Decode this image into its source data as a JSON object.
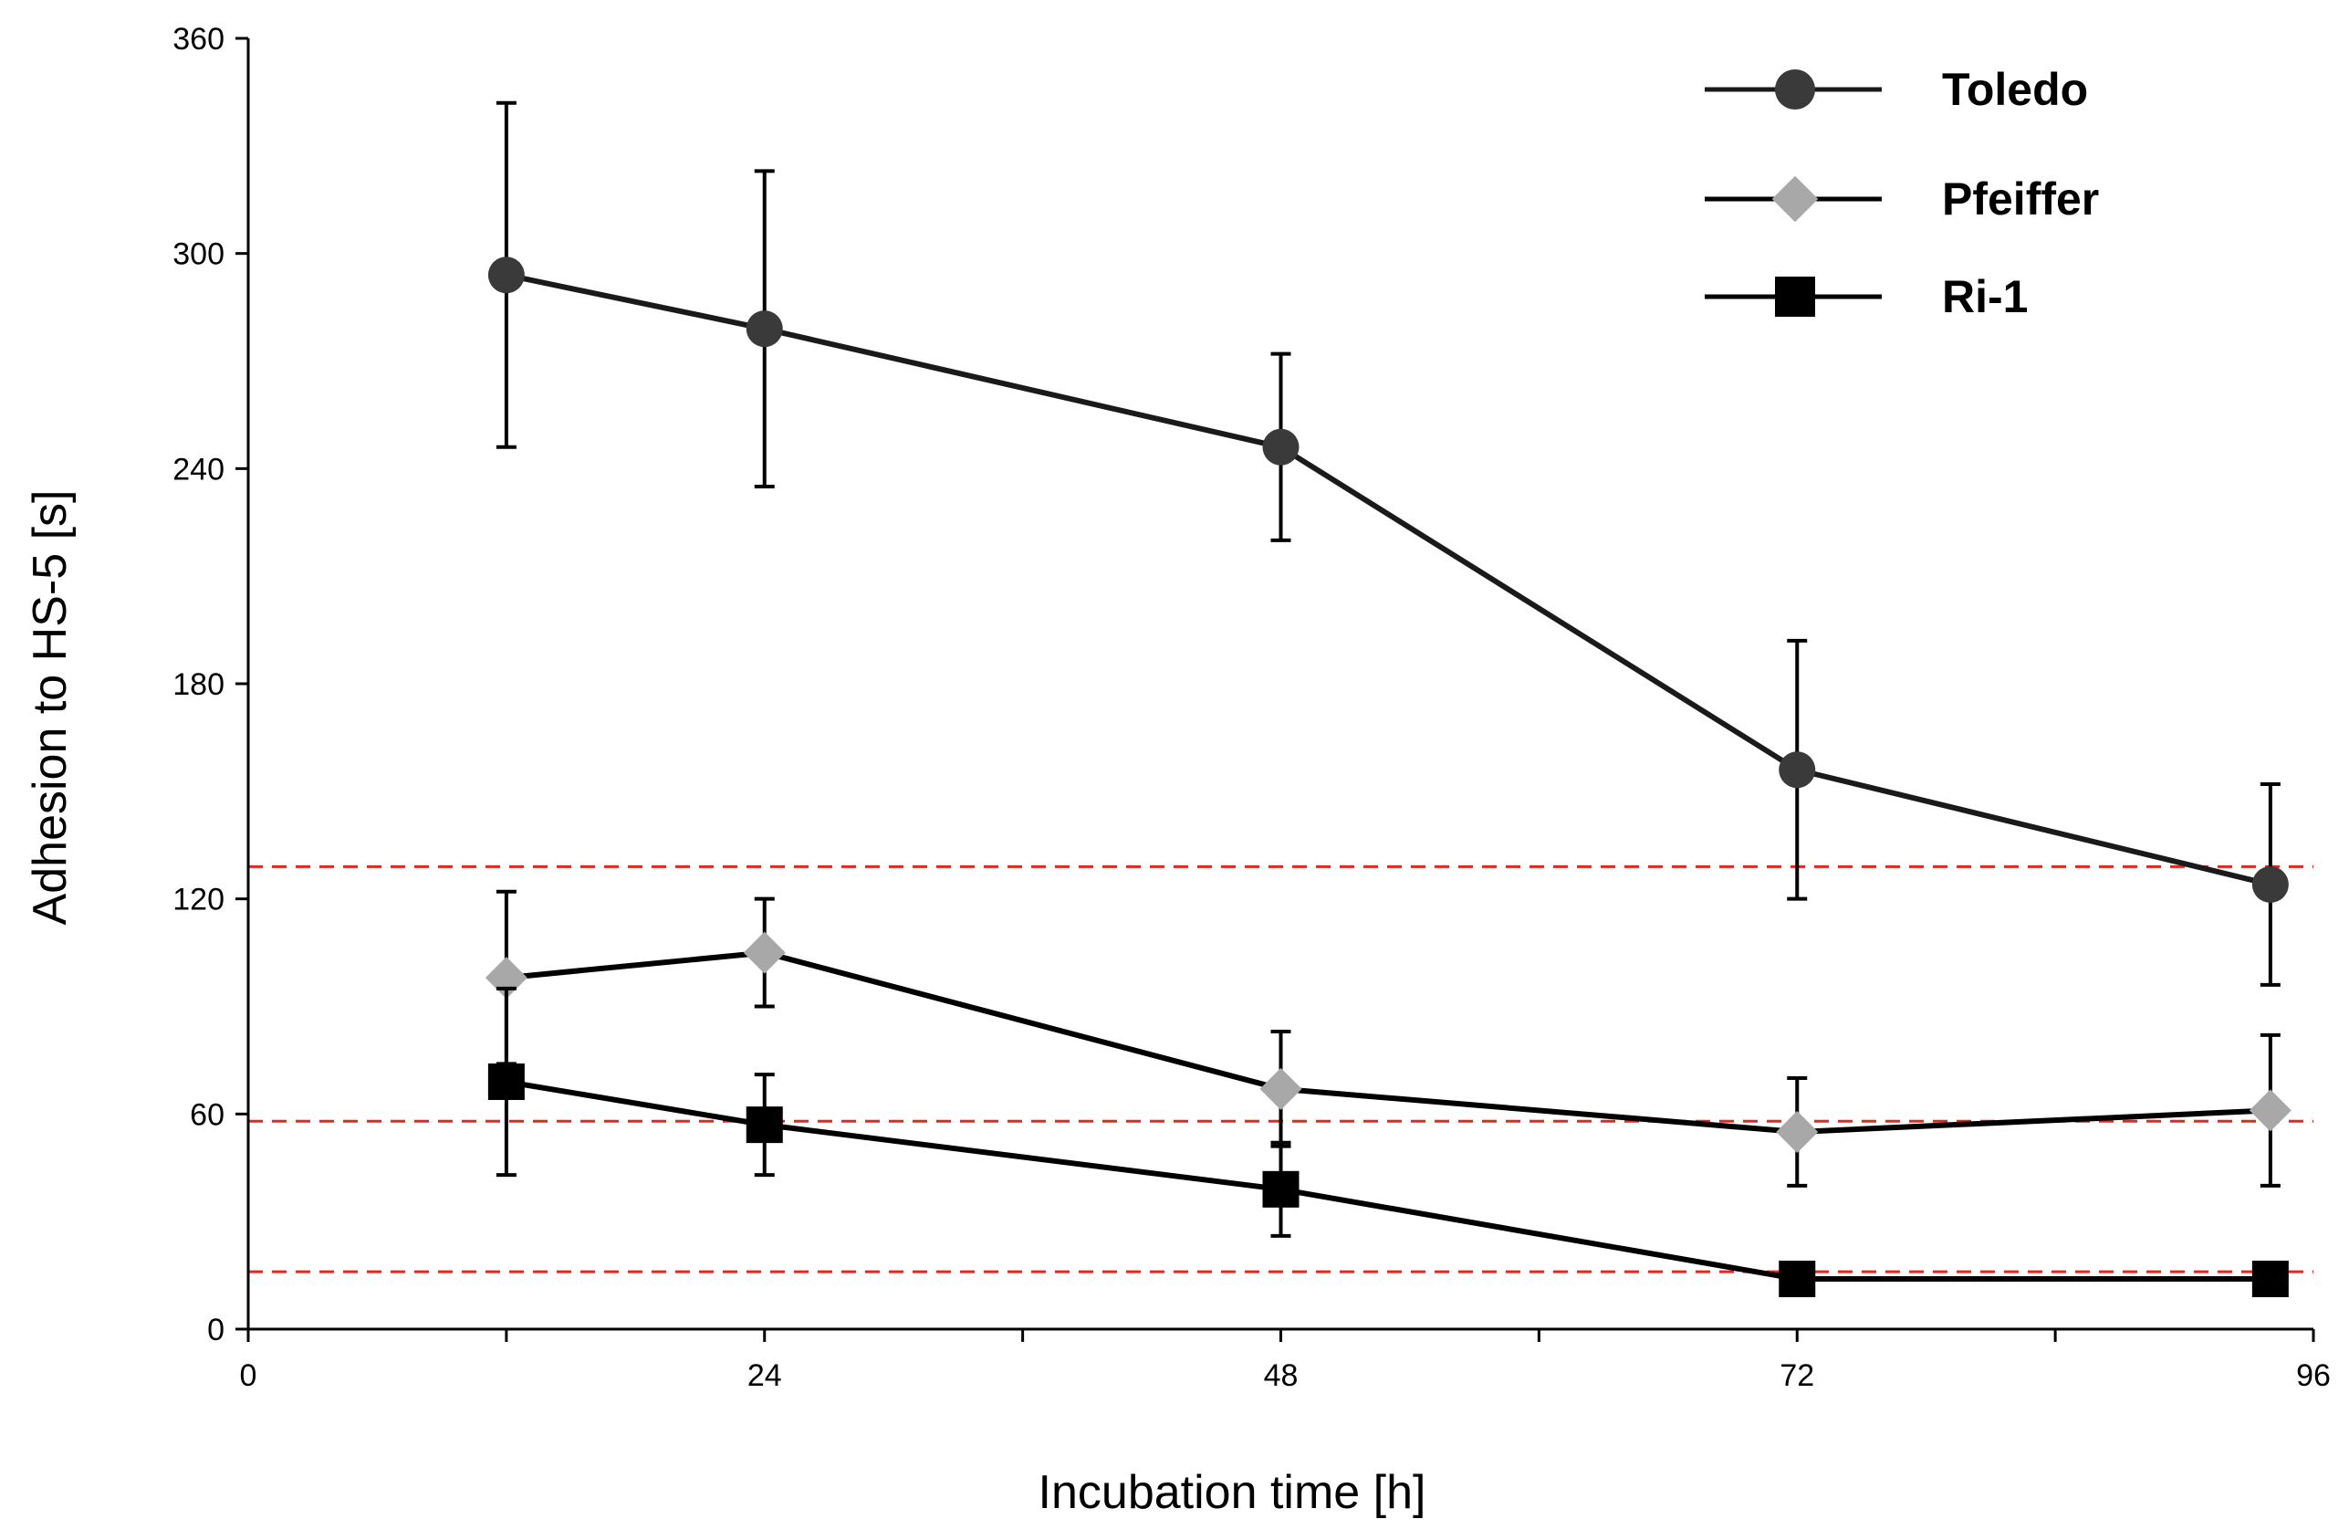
{
  "chart_data": {
    "type": "line",
    "title": "",
    "xlabel": "Incubation time [h]",
    "ylabel": "Adhesion to HS-5 [s]",
    "xlim": [
      0,
      96
    ],
    "ylim": [
      0,
      360
    ],
    "xticks": [
      0,
      24,
      48,
      72,
      96
    ],
    "xtick_labels": [
      "0",
      "24",
      "48",
      "72",
      "96"
    ],
    "x_minor_ticks": [
      12,
      36,
      60,
      84
    ],
    "yticks": [
      0,
      60,
      120,
      180,
      240,
      300,
      360
    ],
    "ytick_labels": [
      "0",
      "60",
      "120",
      "180",
      "240",
      "300",
      "360"
    ],
    "grid": false,
    "legend_position": "top-right",
    "reference_lines": {
      "color": "#e8261e",
      "style": "dashed",
      "y": [
        129,
        58,
        16
      ]
    },
    "series": [
      {
        "name": "Toledo",
        "marker": "circle",
        "marker_color": "#3a3a3a",
        "line_color": "#1a1a1a",
        "x": [
          12,
          24,
          48,
          72,
          94
        ],
        "y": [
          294,
          279,
          246,
          156,
          124
        ],
        "error": [
          48,
          44,
          26,
          36,
          28
        ]
      },
      {
        "name": "Pfeiffer",
        "marker": "diamond",
        "marker_color": "#a8a8a8",
        "line_color": "#000000",
        "x": [
          12,
          24,
          48,
          72,
          94
        ],
        "y": [
          98,
          105,
          67,
          55,
          61
        ],
        "error": [
          24,
          15,
          16,
          15,
          21
        ]
      },
      {
        "name": "Ri-1",
        "marker": "square",
        "marker_color": "#000000",
        "line_color": "#000000",
        "x": [
          12,
          24,
          48,
          72,
          94
        ],
        "y": [
          69,
          57,
          39,
          14,
          14
        ],
        "error": [
          26,
          14,
          13,
          3,
          3
        ]
      }
    ]
  }
}
